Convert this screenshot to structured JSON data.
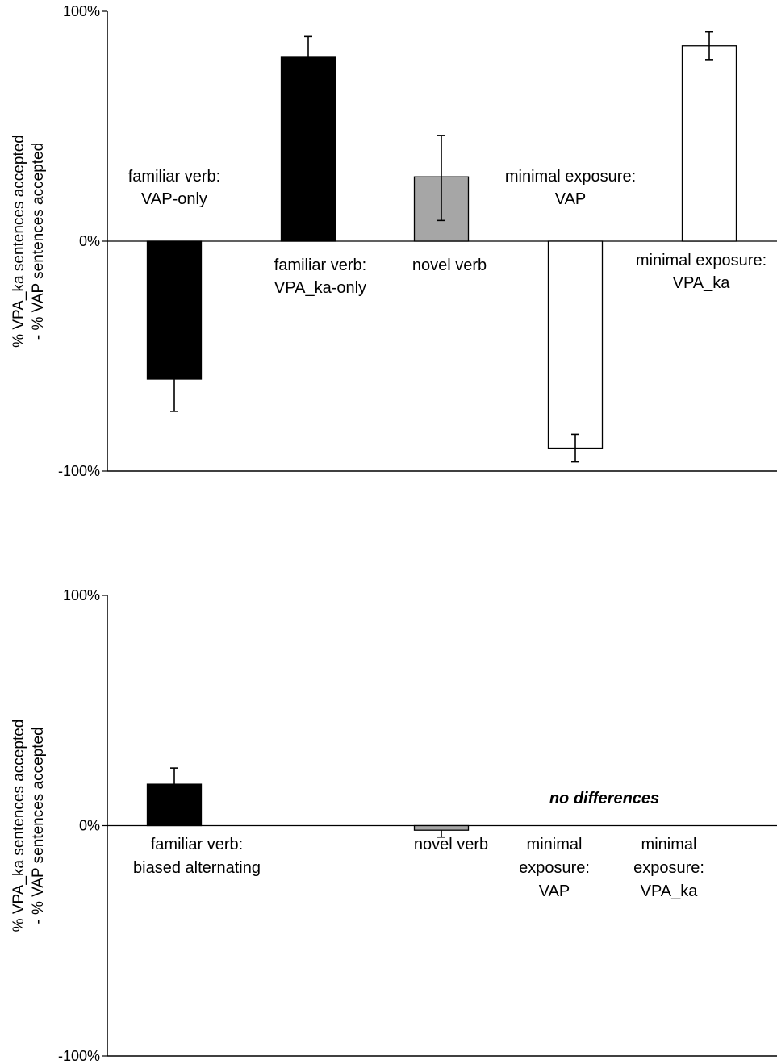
{
  "chart_data": [
    {
      "type": "bar",
      "ylabel_line1": "% VPA_ka sentences accepted",
      "ylabel_line2": "- % VAP sentences accepted",
      "ylim": [
        -100,
        100
      ],
      "yticks": [
        {
          "value": 100,
          "label": "100%"
        },
        {
          "value": 0,
          "label": "0%"
        },
        {
          "value": -100,
          "label": "-100%"
        }
      ],
      "bars": [
        {
          "label_lines": [
            "familiar verb:",
            "VAP-only"
          ],
          "value": -60,
          "err_low": -74,
          "err_high": -60,
          "color": "#000000"
        },
        {
          "label_lines": [
            "familiar verb:",
            "VPA_ka-only"
          ],
          "value": 80,
          "err_low": 80,
          "err_high": 89,
          "color": "#000000"
        },
        {
          "label_lines": [
            "novel verb"
          ],
          "value": 28,
          "err_low": 9,
          "err_high": 46,
          "color": "#a6a6a6"
        },
        {
          "label_lines": [
            "minimal exposure:",
            "VAP"
          ],
          "value": -90,
          "err_low": -96,
          "err_high": -84,
          "color": "#ffffff"
        },
        {
          "label_lines": [
            "minimal exposure:",
            "VPA_ka"
          ],
          "value": 85,
          "err_low": 79,
          "err_high": 91,
          "color": "#ffffff"
        }
      ],
      "annotation": ""
    },
    {
      "type": "bar",
      "ylabel_line1": "% VPA_ka sentences accepted",
      "ylabel_line2": "- % VAP sentences accepted",
      "ylim": [
        -100,
        100
      ],
      "yticks": [
        {
          "value": 100,
          "label": "100%"
        },
        {
          "value": 0,
          "label": "0%"
        },
        {
          "value": -100,
          "label": "-100%"
        }
      ],
      "bars": [
        {
          "label_lines": [
            "familiar verb:",
            "biased alternating"
          ],
          "value": 18,
          "err_low": 18,
          "err_high": 25,
          "color": "#000000"
        },
        {
          "label_lines": [
            "novel verb"
          ],
          "value": -2,
          "err_low": -5,
          "err_high": -2,
          "color": "#a6a6a6"
        },
        {
          "label_lines": [
            "minimal",
            "exposure:",
            "VAP"
          ],
          "value": 0,
          "err_low": 0,
          "err_high": 0,
          "color": "#ffffff"
        },
        {
          "label_lines": [
            "minimal",
            "exposure:",
            "VPA_ka"
          ],
          "value": 0,
          "err_low": 0,
          "err_high": 0,
          "color": "#ffffff"
        }
      ],
      "annotation": "no differences"
    }
  ]
}
